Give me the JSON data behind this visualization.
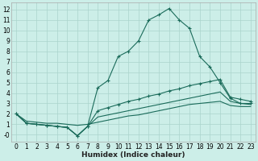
{
  "xlabel": "Humidex (Indice chaleur)",
  "bg_color": "#cceee8",
  "grid_color": "#aad4cc",
  "line_color": "#1a6b5a",
  "xlim": [
    -0.5,
    23.5
  ],
  "ylim": [
    -0.7,
    12.7
  ],
  "xticks": [
    0,
    1,
    2,
    3,
    4,
    5,
    6,
    7,
    8,
    9,
    10,
    11,
    12,
    13,
    14,
    15,
    16,
    17,
    18,
    19,
    20,
    21,
    22,
    23
  ],
  "yticks": [
    0,
    1,
    2,
    3,
    4,
    5,
    6,
    7,
    8,
    9,
    10,
    11,
    12
  ],
  "ytick_labels": [
    "-0",
    "1",
    "2",
    "3",
    "4",
    "5",
    "6",
    "7",
    "8",
    "9",
    "10",
    "11",
    "12"
  ],
  "line1_x": [
    0,
    1,
    2,
    3,
    4,
    5,
    6,
    7,
    8,
    9,
    10,
    11,
    12,
    13,
    14,
    15,
    16,
    17,
    18,
    19,
    20,
    21,
    22,
    23
  ],
  "line1_y": [
    2,
    1.1,
    1.0,
    0.9,
    0.8,
    0.7,
    -0.1,
    0.8,
    4.5,
    5.2,
    7.5,
    8.0,
    9.0,
    11.0,
    11.5,
    12.1,
    11.0,
    10.2,
    7.5,
    6.5,
    5.0,
    3.5,
    3.0,
    3.0
  ],
  "line2_x": [
    0,
    1,
    2,
    3,
    4,
    5,
    6,
    7,
    8,
    9,
    10,
    11,
    12,
    13,
    14,
    15,
    16,
    17,
    18,
    19,
    20,
    21,
    22,
    23
  ],
  "line2_y": [
    2,
    1.1,
    1.0,
    0.9,
    0.8,
    0.7,
    -0.1,
    0.8,
    2.3,
    2.6,
    2.9,
    3.2,
    3.4,
    3.7,
    3.9,
    4.2,
    4.4,
    4.7,
    4.9,
    5.1,
    5.3,
    3.6,
    3.4,
    3.2
  ],
  "line3_x": [
    0,
    1,
    2,
    3,
    4,
    5,
    6,
    7,
    8,
    9,
    10,
    11,
    12,
    13,
    14,
    15,
    16,
    17,
    18,
    19,
    20,
    21,
    22,
    23
  ],
  "line3_y": [
    2,
    1.1,
    1.0,
    0.9,
    0.8,
    0.7,
    -0.1,
    0.8,
    1.7,
    1.9,
    2.1,
    2.3,
    2.5,
    2.7,
    2.9,
    3.1,
    3.3,
    3.5,
    3.7,
    3.9,
    4.1,
    3.2,
    3.0,
    2.9
  ],
  "line4_x": [
    0,
    1,
    2,
    3,
    4,
    5,
    6,
    7,
    8,
    9,
    10,
    11,
    12,
    13,
    14,
    15,
    16,
    17,
    18,
    19,
    20,
    21,
    22,
    23
  ],
  "line4_y": [
    2,
    1.3,
    1.2,
    1.1,
    1.1,
    1.0,
    0.9,
    1.0,
    1.2,
    1.4,
    1.6,
    1.8,
    1.9,
    2.1,
    2.3,
    2.5,
    2.7,
    2.9,
    3.0,
    3.1,
    3.2,
    2.8,
    2.7,
    2.7
  ],
  "tick_fontsize": 5.5,
  "xlabel_fontsize": 6.5
}
